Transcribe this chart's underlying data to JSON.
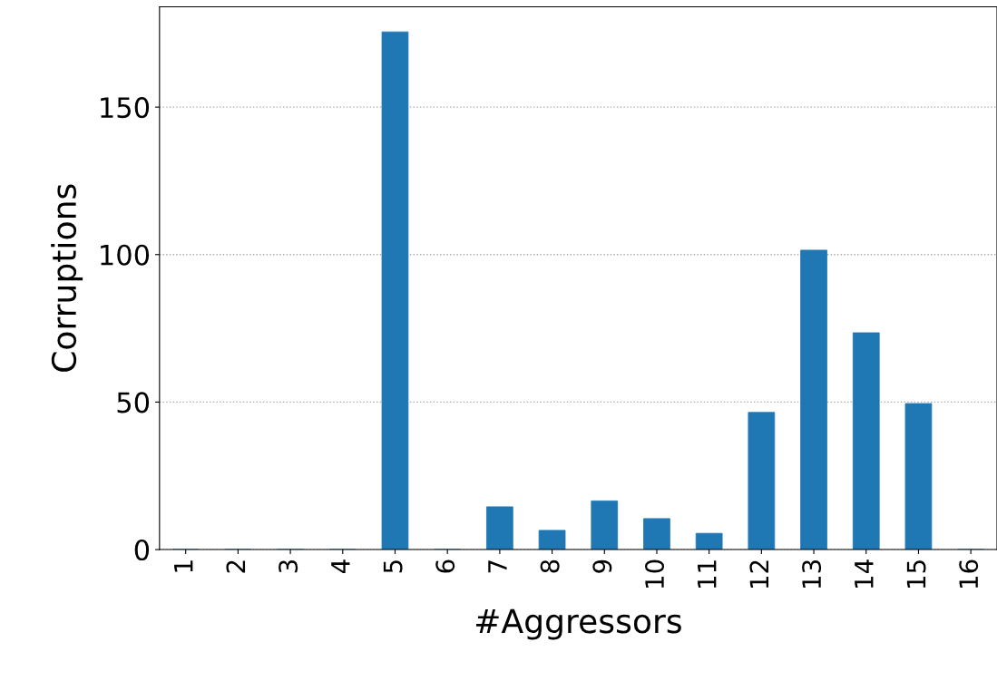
{
  "chart_data": {
    "type": "bar",
    "xlabel": "#Aggressors",
    "ylabel": "Corruptions",
    "categories": [
      "1",
      "2",
      "3",
      "4",
      "5",
      "6",
      "7",
      "8",
      "9",
      "10",
      "11",
      "12",
      "13",
      "14",
      "15",
      "16"
    ],
    "values": [
      0,
      0,
      0,
      0,
      175.5,
      0,
      14.5,
      6.5,
      16.5,
      10.5,
      5.5,
      46.5,
      101.5,
      73.5,
      49.5,
      0
    ],
    "color": "#1f77b4",
    "ylim": [
      0,
      184
    ],
    "yticks": [
      0,
      50,
      100,
      150
    ],
    "grid": "y"
  }
}
